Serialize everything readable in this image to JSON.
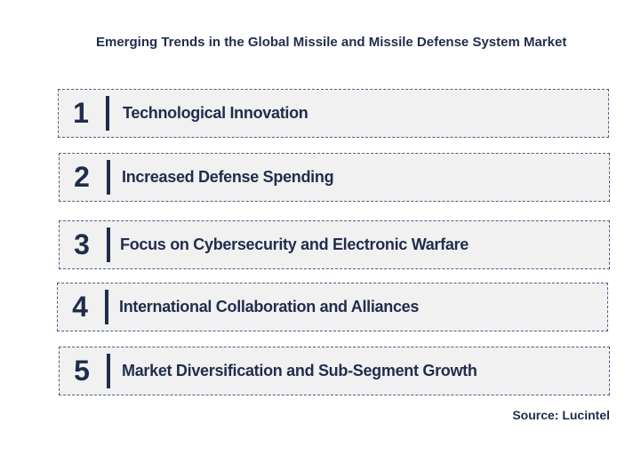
{
  "title": "Emerging Trends in the Global Missile and Missile Defense System Market",
  "trends": [
    {
      "number": "1",
      "label": "Technological Innovation"
    },
    {
      "number": "2",
      "label": "Increased Defense Spending"
    },
    {
      "number": "3",
      "label": "Focus on Cybersecurity and Electronic Warfare"
    },
    {
      "number": "4",
      "label": "International Collaboration and Alliances"
    },
    {
      "number": "5",
      "label": "Market Diversification and Sub-Segment Growth"
    }
  ],
  "source": "Source: Lucintel",
  "colors": {
    "text": "#1f2d4d",
    "box_fill": "#f1f1f1",
    "box_border": "#4b5f86"
  }
}
